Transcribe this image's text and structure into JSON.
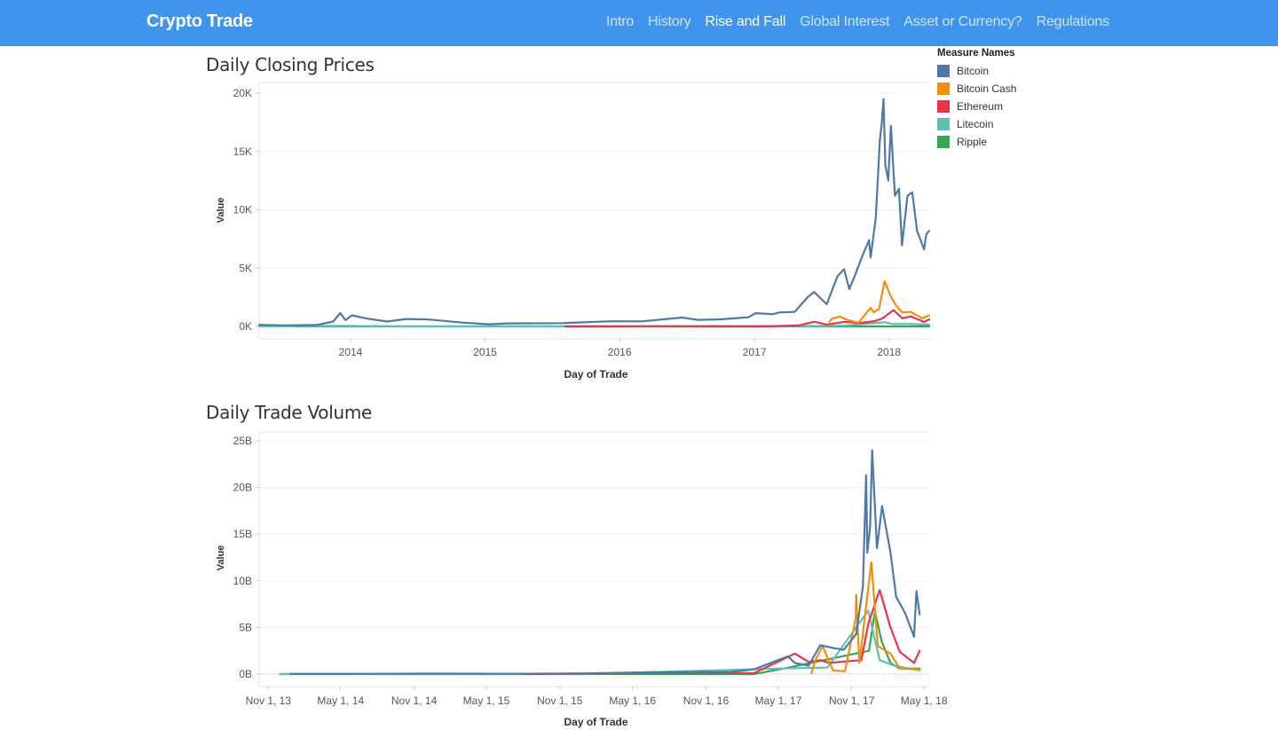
{
  "header": {
    "brand": "Crypto Trade",
    "nav": [
      {
        "label": "Intro",
        "active": false
      },
      {
        "label": "History",
        "active": false
      },
      {
        "label": "Rise and Fall",
        "active": true
      },
      {
        "label": "Global Interest",
        "active": false
      },
      {
        "label": "Asset or Currency?",
        "active": false
      },
      {
        "label": "Regulations",
        "active": false
      }
    ]
  },
  "legend": {
    "title": "Measure Names",
    "items": [
      {
        "name": "Bitcoin",
        "color": "#4e79a7"
      },
      {
        "name": "Bitcoin Cash",
        "color": "#f28e0b"
      },
      {
        "name": "Ethereum",
        "color": "#e8354a"
      },
      {
        "name": "Litecoin",
        "color": "#5fbfb4"
      },
      {
        "name": "Ripple",
        "color": "#32a852"
      }
    ]
  },
  "chart_data": [
    {
      "type": "line",
      "title": "Daily Closing Prices",
      "xlabel": "Day of Trade",
      "ylabel": "Value",
      "ylim": [
        0,
        20000
      ],
      "xlim": [
        "2013-04-28",
        "2018-04-20"
      ],
      "y_ticks": [
        "0K",
        "5K",
        "10K",
        "15K",
        "20K"
      ],
      "y_tick_values": [
        0,
        5000,
        10000,
        15000,
        20000
      ],
      "x_ticks": [
        "2014",
        "2015",
        "2016",
        "2017",
        "2018"
      ],
      "x_tick_values": [
        "2014-01-01",
        "2015-01-01",
        "2016-01-01",
        "2017-01-01",
        "2018-01-01"
      ],
      "grid": true,
      "series": [
        {
          "name": "Bitcoin",
          "color": "#4e79a7",
          "points": [
            [
              "2013-04-28",
              135
            ],
            [
              "2013-07-01",
              95
            ],
            [
              "2013-10-01",
              125
            ],
            [
              "2013-11-15",
              420
            ],
            [
              "2013-12-04",
              1150
            ],
            [
              "2013-12-18",
              540
            ],
            [
              "2014-01-05",
              950
            ],
            [
              "2014-02-10",
              700
            ],
            [
              "2014-04-10",
              420
            ],
            [
              "2014-06-01",
              640
            ],
            [
              "2014-08-01",
              590
            ],
            [
              "2014-11-01",
              330
            ],
            [
              "2015-01-14",
              180
            ],
            [
              "2015-03-01",
              260
            ],
            [
              "2015-08-01",
              280
            ],
            [
              "2015-11-04",
              400
            ],
            [
              "2015-12-20",
              440
            ],
            [
              "2016-03-01",
              430
            ],
            [
              "2016-06-18",
              760
            ],
            [
              "2016-08-01",
              560
            ],
            [
              "2016-10-01",
              610
            ],
            [
              "2016-12-15",
              780
            ],
            [
              "2017-01-04",
              1130
            ],
            [
              "2017-02-20",
              1050
            ],
            [
              "2017-03-10",
              1200
            ],
            [
              "2017-04-20",
              1250
            ],
            [
              "2017-05-25",
              2500
            ],
            [
              "2017-06-12",
              2950
            ],
            [
              "2017-07-16",
              1900
            ],
            [
              "2017-08-14",
              4300
            ],
            [
              "2017-09-01",
              4900
            ],
            [
              "2017-09-15",
              3200
            ],
            [
              "2017-10-01",
              4400
            ],
            [
              "2017-10-20",
              6000
            ],
            [
              "2017-11-08",
              7400
            ],
            [
              "2017-11-12",
              5900
            ],
            [
              "2017-11-26",
              9300
            ],
            [
              "2017-12-07",
              16000
            ],
            [
              "2017-12-12",
              17300
            ],
            [
              "2017-12-17",
              19500
            ],
            [
              "2017-12-22",
              13800
            ],
            [
              "2017-12-30",
              12500
            ],
            [
              "2018-01-06",
              17200
            ],
            [
              "2018-01-17",
              11200
            ],
            [
              "2018-01-28",
              11800
            ],
            [
              "2018-02-05",
              6950
            ],
            [
              "2018-02-20",
              11200
            ],
            [
              "2018-03-05",
              11500
            ],
            [
              "2018-03-18",
              8200
            ],
            [
              "2018-04-06",
              6600
            ],
            [
              "2018-04-12",
              7900
            ],
            [
              "2018-04-20",
              8200
            ]
          ]
        },
        {
          "name": "Bitcoin Cash",
          "color": "#f28e0b",
          "points": [
            [
              "2017-07-23",
              400
            ],
            [
              "2017-08-02",
              690
            ],
            [
              "2017-08-20",
              850
            ],
            [
              "2017-09-10",
              550
            ],
            [
              "2017-10-10",
              320
            ],
            [
              "2017-11-12",
              1600
            ],
            [
              "2017-11-20",
              1200
            ],
            [
              "2017-12-05",
              1500
            ],
            [
              "2017-12-20",
              3900
            ],
            [
              "2018-01-05",
              2600
            ],
            [
              "2018-01-20",
              1800
            ],
            [
              "2018-02-06",
              1200
            ],
            [
              "2018-03-01",
              1250
            ],
            [
              "2018-04-01",
              700
            ],
            [
              "2018-04-20",
              950
            ]
          ]
        },
        {
          "name": "Ethereum",
          "color": "#e8354a",
          "points": [
            [
              "2015-08-07",
              2
            ],
            [
              "2016-03-01",
              12
            ],
            [
              "2016-06-17",
              14
            ],
            [
              "2017-02-01",
              11
            ],
            [
              "2017-05-01",
              80
            ],
            [
              "2017-06-12",
              400
            ],
            [
              "2017-07-16",
              160
            ],
            [
              "2017-09-01",
              390
            ],
            [
              "2017-10-15",
              300
            ],
            [
              "2017-11-25",
              470
            ],
            [
              "2017-12-15",
              700
            ],
            [
              "2018-01-13",
              1400
            ],
            [
              "2018-02-06",
              700
            ],
            [
              "2018-03-01",
              860
            ],
            [
              "2018-04-06",
              380
            ],
            [
              "2018-04-20",
              600
            ]
          ]
        },
        {
          "name": "Litecoin",
          "color": "#5fbfb4",
          "points": [
            [
              "2013-04-28",
              4
            ],
            [
              "2013-12-01",
              45
            ],
            [
              "2014-06-01",
              10
            ],
            [
              "2016-01-01",
              4
            ],
            [
              "2017-05-01",
              30
            ],
            [
              "2017-09-01",
              70
            ],
            [
              "2017-12-19",
              360
            ],
            [
              "2018-01-15",
              200
            ],
            [
              "2018-02-12",
              220
            ],
            [
              "2018-04-20",
              150
            ]
          ]
        },
        {
          "name": "Ripple",
          "color": "#32a852",
          "points": [
            [
              "2013-08-04",
              0
            ],
            [
              "2017-05-01",
              0.3
            ],
            [
              "2018-01-04",
              3.4
            ],
            [
              "2018-04-20",
              0.8
            ]
          ]
        }
      ]
    },
    {
      "type": "line",
      "title": "Daily Trade Volume",
      "xlabel": "Day of Trade",
      "ylabel": "Value",
      "ylim": [
        0,
        25000000000
      ],
      "xlim": [
        "2013-10-09",
        "2018-05-14"
      ],
      "y_ticks": [
        "0B",
        "5B",
        "10B",
        "15B",
        "20B",
        "25B"
      ],
      "y_tick_values": [
        0,
        5000000000,
        10000000000,
        15000000000,
        20000000000,
        25000000000
      ],
      "x_ticks": [
        "Nov 1, 13",
        "May 1, 14",
        "Nov 1, 14",
        "May 1, 15",
        "Nov 1, 15",
        "May 1, 16",
        "Nov 1, 16",
        "May 1, 17",
        "Nov 1, 17",
        "May 1, 18"
      ],
      "x_tick_values": [
        "2013-11-01",
        "2014-05-01",
        "2014-11-01",
        "2015-05-01",
        "2015-11-01",
        "2016-05-01",
        "2016-11-01",
        "2017-05-01",
        "2017-11-01",
        "2018-05-01"
      ],
      "grid": true,
      "series": [
        {
          "name": "Bitcoin",
          "color": "#4e79a7",
          "points": [
            [
              "2013-12-27",
              30000000
            ],
            [
              "2014-06-01",
              25000000
            ],
            [
              "2015-01-15",
              60000000
            ],
            [
              "2015-08-01",
              40000000
            ],
            [
              "2016-01-01",
              80000000
            ],
            [
              "2016-06-18",
              200000000
            ],
            [
              "2017-01-04",
              250000000
            ],
            [
              "2017-03-01",
              500000000
            ],
            [
              "2017-05-25",
              1900000000
            ],
            [
              "2017-06-12",
              1200000000
            ],
            [
              "2017-07-16",
              900000000
            ],
            [
              "2017-08-14",
              3100000000
            ],
            [
              "2017-09-15",
              2800000000
            ],
            [
              "2017-10-12",
              2600000000
            ],
            [
              "2017-11-12",
              4300000000
            ],
            [
              "2017-11-29",
              9400000000
            ],
            [
              "2017-12-07",
              21300000000
            ],
            [
              "2017-12-10",
              13000000000
            ],
            [
              "2017-12-17",
              15800000000
            ],
            [
              "2017-12-22",
              24000000000
            ],
            [
              "2018-01-03",
              13500000000
            ],
            [
              "2018-01-16",
              18000000000
            ],
            [
              "2018-02-06",
              13000000000
            ],
            [
              "2018-02-20",
              8300000000
            ],
            [
              "2018-03-15",
              6500000000
            ],
            [
              "2018-04-06",
              4000000000
            ],
            [
              "2018-04-12",
              8900000000
            ],
            [
              "2018-04-20",
              6400000000
            ]
          ]
        },
        {
          "name": "Bitcoin Cash",
          "color": "#f28e0b",
          "points": [
            [
              "2017-07-23",
              100000000
            ],
            [
              "2017-08-03",
              1600000000
            ],
            [
              "2017-08-20",
              3000000000
            ],
            [
              "2017-09-15",
              400000000
            ],
            [
              "2017-10-15",
              300000000
            ],
            [
              "2017-11-11",
              6000000000
            ],
            [
              "2017-11-12",
              8500000000
            ],
            [
              "2017-11-20",
              1200000000
            ],
            [
              "2017-12-20",
              12000000000
            ],
            [
              "2018-01-05",
              3000000000
            ],
            [
              "2018-02-06",
              2200000000
            ],
            [
              "2018-03-01",
              600000000
            ],
            [
              "2018-04-20",
              500000000
            ]
          ]
        },
        {
          "name": "Ethereum",
          "color": "#e8354a",
          "points": [
            [
              "2015-08-07",
              200000
            ],
            [
              "2016-06-17",
              100000000
            ],
            [
              "2017-03-01",
              100000000
            ],
            [
              "2017-06-12",
              2200000000
            ],
            [
              "2017-07-16",
              1300000000
            ],
            [
              "2017-08-14",
              1500000000
            ],
            [
              "2017-09-05",
              1200000000
            ],
            [
              "2017-11-25",
              1500000000
            ],
            [
              "2017-12-13",
              5500000000
            ],
            [
              "2018-01-10",
              9000000000
            ],
            [
              "2018-02-06",
              5000000000
            ],
            [
              "2018-03-01",
              2400000000
            ],
            [
              "2018-04-06",
              1200000000
            ],
            [
              "2018-04-20",
              2500000000
            ]
          ]
        },
        {
          "name": "Litecoin",
          "color": "#5fbfb4",
          "points": [
            [
              "2013-12-01",
              5000000
            ],
            [
              "2016-01-01",
              3000000
            ],
            [
              "2017-05-01",
              600000000
            ],
            [
              "2017-09-01",
              700000000
            ],
            [
              "2017-12-12",
              6800000000
            ],
            [
              "2018-01-10",
              1500000000
            ],
            [
              "2018-02-15",
              900000000
            ],
            [
              "2018-04-20",
              400000000
            ]
          ]
        },
        {
          "name": "Ripple",
          "color": "#32a852",
          "points": [
            [
              "2013-12-01",
              1000000
            ],
            [
              "2017-03-01",
              10000000
            ],
            [
              "2017-05-15",
              600000000
            ],
            [
              "2017-12-14",
              2500000000
            ],
            [
              "2017-12-29",
              6700000000
            ],
            [
              "2018-01-15",
              3500000000
            ],
            [
              "2018-02-06",
              1200000000
            ],
            [
              "2018-03-01",
              600000000
            ],
            [
              "2018-04-20",
              600000000
            ]
          ]
        }
      ]
    }
  ]
}
